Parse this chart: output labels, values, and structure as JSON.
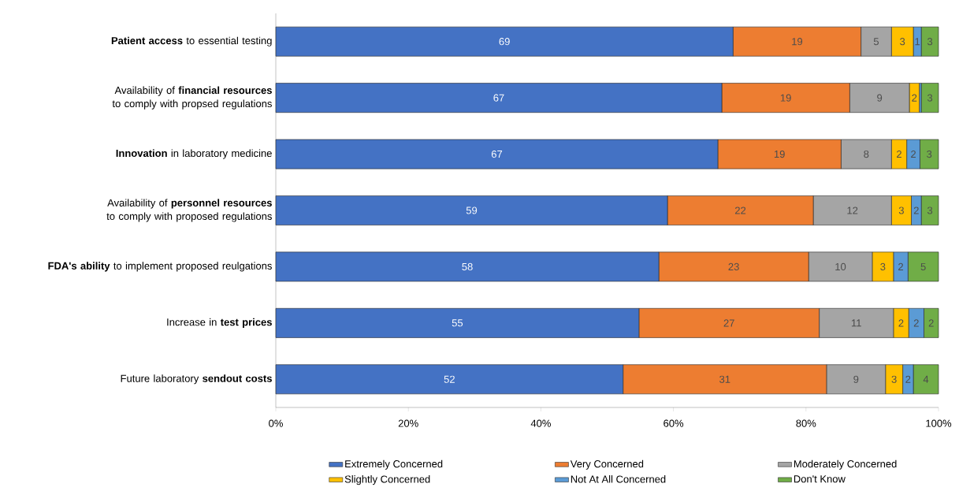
{
  "chart_data": {
    "type": "bar",
    "orientation": "horizontal",
    "stacked": true,
    "categories": [
      "**Patient access** to essential testing",
      "Availability of **financial resources** to comply with propsed regulations",
      "**Innovation** in laboratory medicine",
      "Availability of **personnel resources** to comply with proposed regulations",
      "**FDA's ability** to implement proposed reulgations",
      "Increase in **test prices**",
      "Future laboratory **sendout costs**"
    ],
    "series": [
      {
        "name": "Extremely Concerned",
        "color": "#4472c4",
        "values": [
          69.0,
          67.3,
          66.7,
          59.1,
          57.8,
          54.8,
          52.4
        ],
        "value_labels": [
          "69",
          "67",
          "67",
          "59",
          "58",
          "55",
          "52"
        ]
      },
      {
        "name": "Very Concerned",
        "color": "#ed7d31",
        "values": [
          19.3,
          19.3,
          18.6,
          22.0,
          22.6,
          27.2,
          30.7
        ],
        "value_labels": [
          "19",
          "19",
          "19",
          "22",
          "23",
          "27",
          "31"
        ]
      },
      {
        "name": "Moderately Concerned",
        "color": "#a5a5a5",
        "values": [
          4.6,
          9.0,
          7.6,
          11.8,
          9.6,
          11.2,
          8.9
        ],
        "value_labels": [
          "5",
          "9",
          "8",
          "12",
          "10",
          "11",
          "9"
        ]
      },
      {
        "name": "Slightly Concerned",
        "color": "#ffc000",
        "values": [
          3.3,
          1.5,
          2.3,
          3.0,
          3.2,
          2.3,
          2.6
        ],
        "value_labels": [
          "3",
          "2",
          "2",
          "3",
          "3",
          "2",
          "3"
        ]
      },
      {
        "name": "Not At All Concerned",
        "color": "#5b9bd5",
        "values": [
          1.2,
          0.3,
          2.0,
          1.5,
          2.2,
          2.3,
          1.6
        ],
        "value_labels": [
          "1",
          null,
          "2",
          "2",
          "2",
          "2",
          "2"
        ]
      },
      {
        "name": "Don't Know",
        "color": "#70ad47",
        "values": [
          2.6,
          2.6,
          2.8,
          2.6,
          4.6,
          2.2,
          3.8
        ],
        "value_labels": [
          "3",
          "3",
          "3",
          "3",
          "5",
          "2",
          "4"
        ]
      }
    ],
    "xlim": [
      0,
      100
    ],
    "xticks": [
      {
        "value": 0,
        "label": "0%"
      },
      {
        "value": 20,
        "label": "20%"
      },
      {
        "value": 40,
        "label": "40%"
      },
      {
        "value": 60,
        "label": "60%"
      },
      {
        "value": 80,
        "label": "80%"
      },
      {
        "value": 100,
        "label": "100%"
      }
    ],
    "grid": false,
    "legend": "bottom"
  }
}
